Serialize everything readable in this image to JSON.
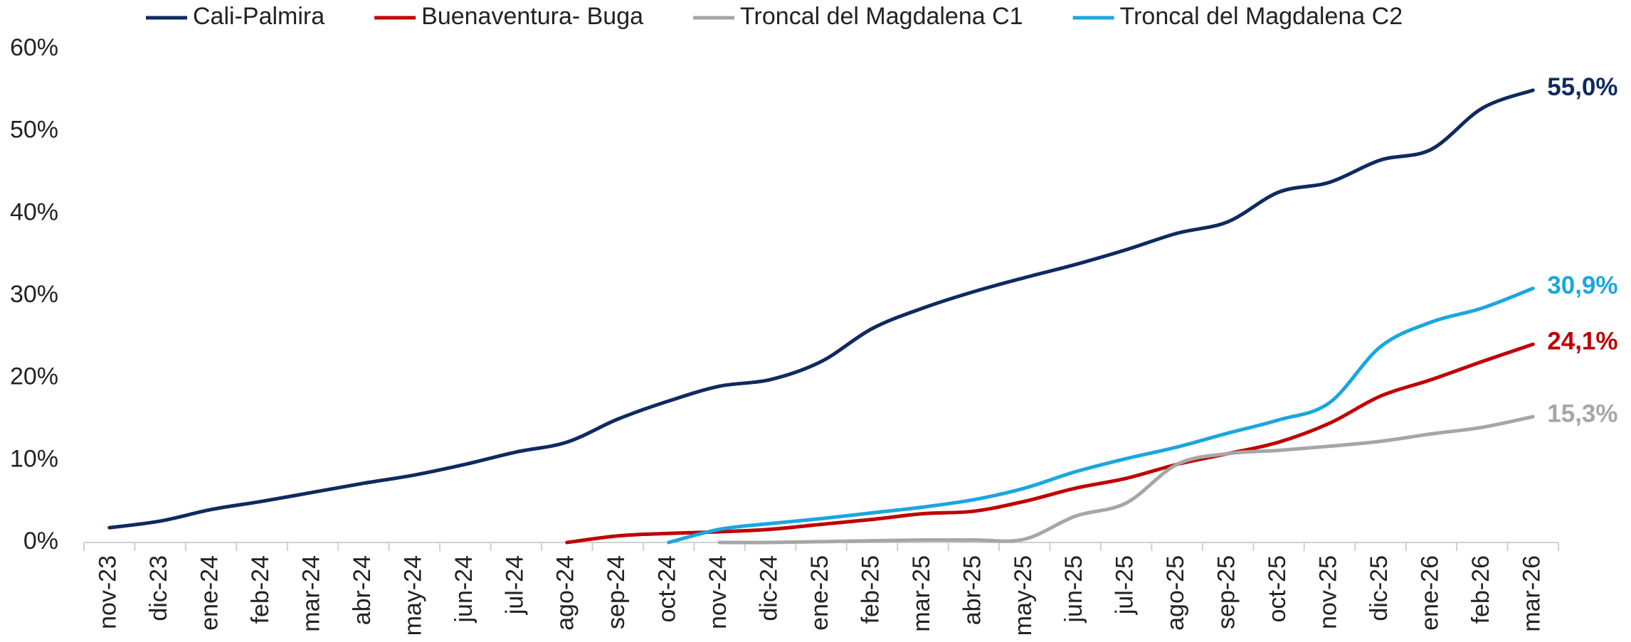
{
  "chart_data": {
    "type": "line",
    "categories": [
      "nov-23",
      "dic-23",
      "ene-24",
      "feb-24",
      "mar-24",
      "abr-24",
      "may-24",
      "jun-24",
      "jul-24",
      "ago-24",
      "sep-24",
      "oct-24",
      "nov-24",
      "dic-24",
      "ene-25",
      "feb-25",
      "mar-25",
      "abr-25",
      "may-25",
      "jun-25",
      "jul-25",
      "ago-25",
      "sep-25",
      "oct-25",
      "nov-25",
      "dic-25",
      "ene-26",
      "feb-26",
      "mar-26"
    ],
    "series": [
      {
        "name": "Cali-Palmira",
        "color": "#0e2a5f",
        "values": [
          1.8,
          2.6,
          4.0,
          5.0,
          6.1,
          7.2,
          8.2,
          9.5,
          11.0,
          12.2,
          15.0,
          17.2,
          19.0,
          19.8,
          22.0,
          26.0,
          28.5,
          30.5,
          32.2,
          33.8,
          35.6,
          37.6,
          39.0,
          42.6,
          43.8,
          46.5,
          47.8,
          52.8,
          55.0
        ],
        "value_labels": [
          null,
          null,
          null,
          null,
          null,
          null,
          null,
          null,
          null,
          null,
          null,
          null,
          null,
          null,
          null,
          null,
          null,
          null,
          null,
          null,
          null,
          null,
          null,
          null,
          null,
          null,
          null,
          null,
          "55,0%"
        ]
      },
      {
        "name": "Buenaventura- Buga",
        "color": "#c00000",
        "values": [
          null,
          null,
          null,
          null,
          null,
          null,
          null,
          null,
          null,
          0,
          0.8,
          1.1,
          1.3,
          1.6,
          2.2,
          2.8,
          3.5,
          3.8,
          5.0,
          6.6,
          7.8,
          9.5,
          10.8,
          12.2,
          14.5,
          17.8,
          19.8,
          22.0,
          24.1
        ],
        "value_labels": [
          null,
          null,
          null,
          null,
          null,
          null,
          null,
          null,
          null,
          null,
          null,
          null,
          null,
          null,
          null,
          null,
          null,
          null,
          null,
          null,
          null,
          null,
          null,
          null,
          null,
          null,
          null,
          null,
          "24,1%"
        ]
      },
      {
        "name": "Troncal del Magdalena C1",
        "color": "#a6a6a6",
        "values": [
          null,
          null,
          null,
          null,
          null,
          null,
          null,
          null,
          null,
          null,
          null,
          null,
          0,
          0,
          0.1,
          0.2,
          0.3,
          0.3,
          0.4,
          3.2,
          4.8,
          9.5,
          10.8,
          11.2,
          11.7,
          12.3,
          13.2,
          14.0,
          15.3
        ],
        "value_labels": [
          null,
          null,
          null,
          null,
          null,
          null,
          null,
          null,
          null,
          null,
          null,
          null,
          null,
          null,
          null,
          null,
          null,
          null,
          null,
          null,
          null,
          null,
          null,
          null,
          null,
          null,
          null,
          null,
          "15,3%"
        ]
      },
      {
        "name": "Troncal del Magdalena C2",
        "color": "#1ba6df",
        "values": [
          null,
          null,
          null,
          null,
          null,
          null,
          null,
          null,
          null,
          null,
          null,
          0,
          1.6,
          2.3,
          2.9,
          3.6,
          4.3,
          5.2,
          6.6,
          8.6,
          10.2,
          11.6,
          13.3,
          14.9,
          17.0,
          23.8,
          26.8,
          28.5,
          30.9
        ],
        "value_labels": [
          null,
          null,
          null,
          null,
          null,
          null,
          null,
          null,
          null,
          null,
          null,
          null,
          null,
          null,
          null,
          null,
          null,
          null,
          null,
          null,
          null,
          null,
          null,
          null,
          null,
          null,
          null,
          null,
          "30,9%"
        ]
      }
    ],
    "ylim": [
      0,
      60
    ],
    "yticks": [
      {
        "value": 0,
        "label": "0%"
      },
      {
        "value": 10,
        "label": "10%"
      },
      {
        "value": 20,
        "label": "20%"
      },
      {
        "value": 30,
        "label": "30%"
      },
      {
        "value": 40,
        "label": "40%"
      },
      {
        "value": 50,
        "label": "50%"
      },
      {
        "value": 60,
        "label": "60%"
      }
    ],
    "grid": false,
    "legend": "top"
  }
}
